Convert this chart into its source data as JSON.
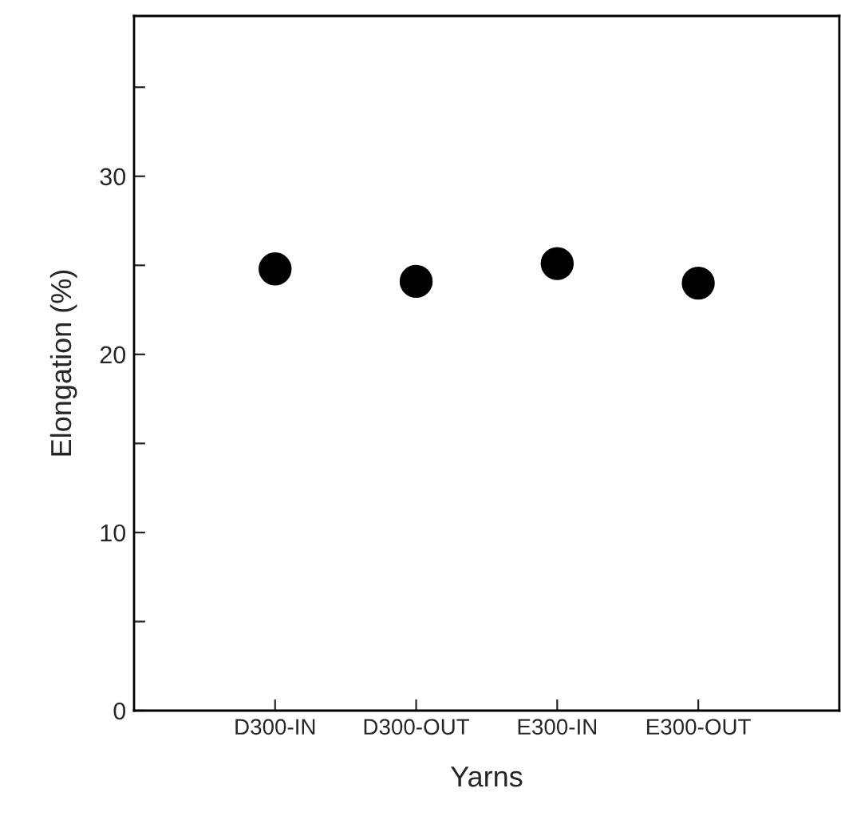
{
  "chart_data": {
    "type": "scatter",
    "xlabel": "Yarns",
    "ylabel": "Elongation (%)",
    "categories": [
      "D300-IN",
      "D300-OUT",
      "E300-IN",
      "E300-OUT"
    ],
    "values": [
      24.8,
      24.1,
      25.1,
      24.0
    ],
    "color": "#000000",
    "marker": "circle",
    "ylim": [
      0,
      39
    ],
    "yticks": [
      0,
      {
        "value": 5,
        "label": null
      },
      10,
      {
        "value": 15,
        "label": null
      },
      20,
      {
        "value": 25,
        "label": null
      },
      30,
      {
        "value": 35,
        "label": null
      }
    ],
    "grid": false,
    "legend": false
  }
}
